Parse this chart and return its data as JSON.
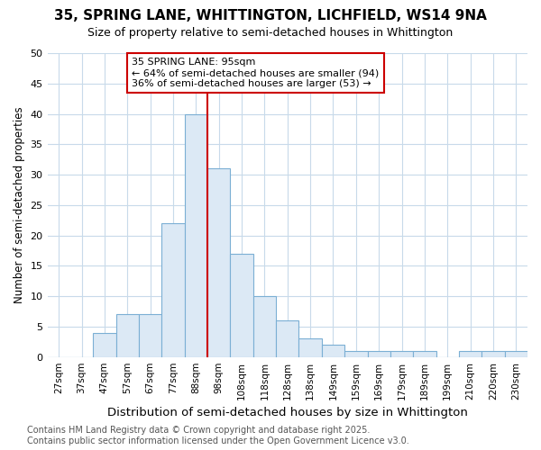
{
  "title": "35, SPRING LANE, WHITTINGTON, LICHFIELD, WS14 9NA",
  "subtitle": "Size of property relative to semi-detached houses in Whittington",
  "xlabel": "Distribution of semi-detached houses by size in Whittington",
  "ylabel": "Number of semi-detached properties",
  "footnote": "Contains HM Land Registry data © Crown copyright and database right 2025.\nContains public sector information licensed under the Open Government Licence v3.0.",
  "bar_labels": [
    "27sqm",
    "37sqm",
    "47sqm",
    "57sqm",
    "67sqm",
    "77sqm",
    "88sqm",
    "98sqm",
    "108sqm",
    "118sqm",
    "128sqm",
    "138sqm",
    "149sqm",
    "159sqm",
    "169sqm",
    "179sqm",
    "189sqm",
    "199sqm",
    "210sqm",
    "220sqm",
    "230sqm"
  ],
  "bar_heights": [
    0,
    0,
    4,
    7,
    7,
    22,
    40,
    31,
    17,
    10,
    6,
    3,
    2,
    1,
    1,
    1,
    1,
    0,
    1,
    1,
    1
  ],
  "bar_color": "#dce9f5",
  "bar_edge_color": "#7bafd4",
  "bar_edge_width": 0.8,
  "red_line_x": 7.0,
  "red_line_color": "#cc0000",
  "annotation_title": "35 SPRING LANE: 95sqm",
  "annotation_line1": "← 64% of semi-detached houses are smaller (94)",
  "annotation_line2": "36% of semi-detached houses are larger (53) →",
  "annotation_box_color": "#ffffff",
  "annotation_box_edge_color": "#cc0000",
  "ylim": [
    0,
    50
  ],
  "yticks": [
    0,
    5,
    10,
    15,
    20,
    25,
    30,
    35,
    40,
    45,
    50
  ],
  "bg_color": "#ffffff",
  "grid_color": "#c8daea",
  "title_fontsize": 11,
  "subtitle_fontsize": 9,
  "xlabel_fontsize": 9.5,
  "ylabel_fontsize": 8.5,
  "tick_fontsize": 7.5,
  "footnote_fontsize": 7
}
